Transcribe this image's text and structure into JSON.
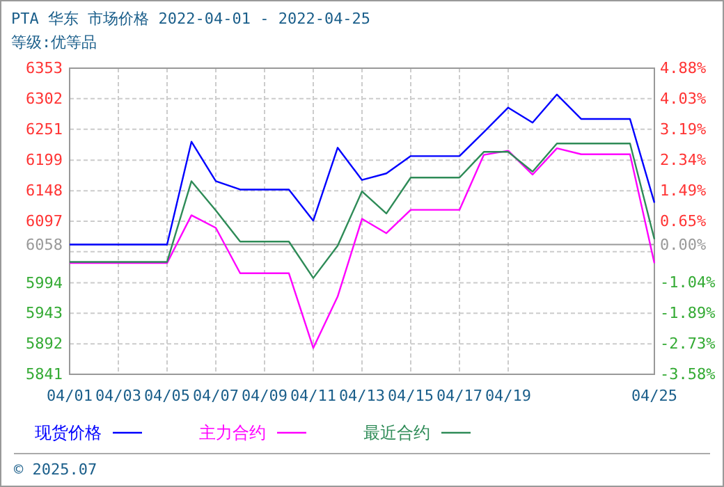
{
  "chart_data": {
    "type": "line",
    "title": "PTA 华东 市场价格 2022-04-01 - 2022-04-25",
    "subtitle": "等级:优等品",
    "x": [
      "2022-04-01",
      "2022-04-02",
      "2022-04-03",
      "2022-04-04",
      "2022-04-05",
      "2022-04-06",
      "2022-04-07",
      "2022-04-08",
      "2022-04-09",
      "2022-04-10",
      "2022-04-11",
      "2022-04-12",
      "2022-04-13",
      "2022-04-14",
      "2022-04-15",
      "2022-04-16",
      "2022-04-17",
      "2022-04-18",
      "2022-04-19",
      "2022-04-20",
      "2022-04-21",
      "2022-04-22",
      "2022-04-23",
      "2022-04-24",
      "2022-04-25"
    ],
    "series": [
      {
        "name": "现货价格",
        "color": "#0000ff",
        "values": [
          6058,
          6058,
          6058,
          6058,
          6058,
          6230,
          6164,
          6150,
          6150,
          6150,
          6098,
          6220,
          6166,
          6177,
          6206,
          6206,
          6206,
          6246,
          6287,
          6262,
          6309,
          6268,
          6268,
          6268,
          6128
        ]
      },
      {
        "name": "主力合约",
        "color": "#ff00ff",
        "values": [
          6027,
          6027,
          6027,
          6027,
          6027,
          6107,
          6086,
          6010,
          6010,
          6010,
          5885,
          5971,
          6101,
          6077,
          6116,
          6116,
          6116,
          6208,
          6215,
          6175,
          6219,
          6209,
          6209,
          6209,
          6027
        ]
      },
      {
        "name": "最近合约",
        "color": "#2e8b57",
        "values": [
          6029,
          6029,
          6029,
          6029,
          6029,
          6164,
          6115,
          6063,
          6063,
          6063,
          6002,
          6056,
          6147,
          6110,
          6170,
          6170,
          6170,
          6213,
          6213,
          6180,
          6227,
          6227,
          6227,
          6227,
          6067
        ]
      }
    ],
    "xlim": [
      "2022-04-01",
      "2022-04-25"
    ],
    "xticks": [
      {
        "value": "2022-04-01",
        "label": "04/01"
      },
      {
        "value": "2022-04-03",
        "label": "04/03"
      },
      {
        "value": "2022-04-05",
        "label": "04/05"
      },
      {
        "value": "2022-04-07",
        "label": "04/07"
      },
      {
        "value": "2022-04-09",
        "label": "04/09"
      },
      {
        "value": "2022-04-11",
        "label": "04/11"
      },
      {
        "value": "2022-04-13",
        "label": "04/13"
      },
      {
        "value": "2022-04-15",
        "label": "04/15"
      },
      {
        "value": "2022-04-17",
        "label": "04/17"
      },
      {
        "value": "2022-04-19",
        "label": "04/19"
      },
      {
        "value": "2022-04-25",
        "label": "04/25"
      }
    ],
    "ylim": [
      5841,
      6353
    ],
    "yticks": [
      5841,
      5892,
      5943,
      5994,
      {
        "value": 6046,
        "label": null
      },
      6097,
      6148,
      6199,
      6251,
      6302,
      6353
    ],
    "y2lim": [
      -3.58,
      4.88
    ],
    "y2ticks": [
      {
        "value": -3.58,
        "label": "-3.58%"
      },
      {
        "value": -2.73,
        "label": "-2.73%"
      },
      {
        "value": -1.89,
        "label": "-1.89%"
      },
      {
        "value": -1.04,
        "label": "-1.04%"
      },
      {
        "value": 0,
        "label": "0.00%"
      },
      {
        "value": 0.65,
        "label": "0.65%"
      },
      {
        "value": 1.49,
        "label": "1.49%"
      },
      {
        "value": 2.34,
        "label": "2.34%"
      },
      {
        "value": 3.19,
        "label": "3.19%"
      },
      {
        "value": 4.03,
        "label": "4.03%"
      },
      {
        "value": 4.88,
        "label": "4.88%"
      }
    ],
    "ref_lines": [
      {
        "axis": "y",
        "value": 6058,
        "label": "6058",
        "color": "#999999"
      }
    ],
    "grid": true,
    "legend": "bottom",
    "marker": "none",
    "line_style": "solid",
    "annotations": [
      "© 2025.07"
    ]
  }
}
